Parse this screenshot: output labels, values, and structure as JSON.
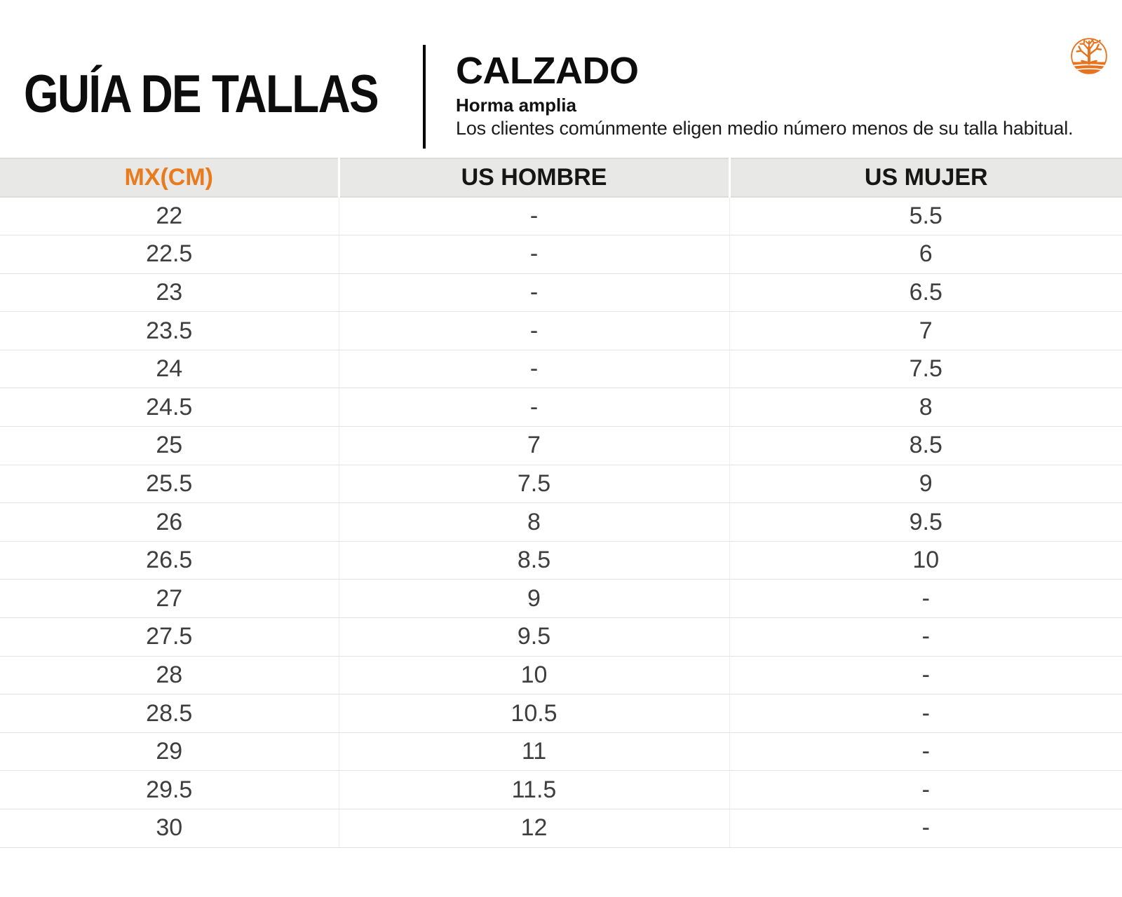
{
  "masthead": {
    "title": "GUÍA DE TALLAS",
    "category": "CALZADO",
    "fit_label": "Horma amplia",
    "note": "Los clientes comúnmente eligen medio número menos de su talla habitual.",
    "logo": "timberland-tree-icon"
  },
  "colors": {
    "accent_orange": "#E87B1E",
    "logo_orange": "#E8731E",
    "header_bg": "#E8E8E6",
    "title_text": "#0d0d0d",
    "cell_text": "#3E3E3E",
    "row_line": "#E2E2E2"
  },
  "table": {
    "columns": [
      "MX(CM)",
      "US HOMBRE",
      "US MUJER"
    ],
    "rows": [
      [
        "22",
        "-",
        "5.5"
      ],
      [
        "22.5",
        "-",
        "6"
      ],
      [
        "23",
        "-",
        "6.5"
      ],
      [
        "23.5",
        "-",
        "7"
      ],
      [
        "24",
        "-",
        "7.5"
      ],
      [
        "24.5",
        "-",
        "8"
      ],
      [
        "25",
        "7",
        "8.5"
      ],
      [
        "25.5",
        "7.5",
        "9"
      ],
      [
        "26",
        "8",
        "9.5"
      ],
      [
        "26.5",
        "8.5",
        "10"
      ],
      [
        "27",
        "9",
        "-"
      ],
      [
        "27.5",
        "9.5",
        "-"
      ],
      [
        "28",
        "10",
        "-"
      ],
      [
        "28.5",
        "10.5",
        "-"
      ],
      [
        "29",
        "11",
        "-"
      ],
      [
        "29.5",
        "11.5",
        "-"
      ],
      [
        "30",
        "12",
        "-"
      ]
    ]
  }
}
